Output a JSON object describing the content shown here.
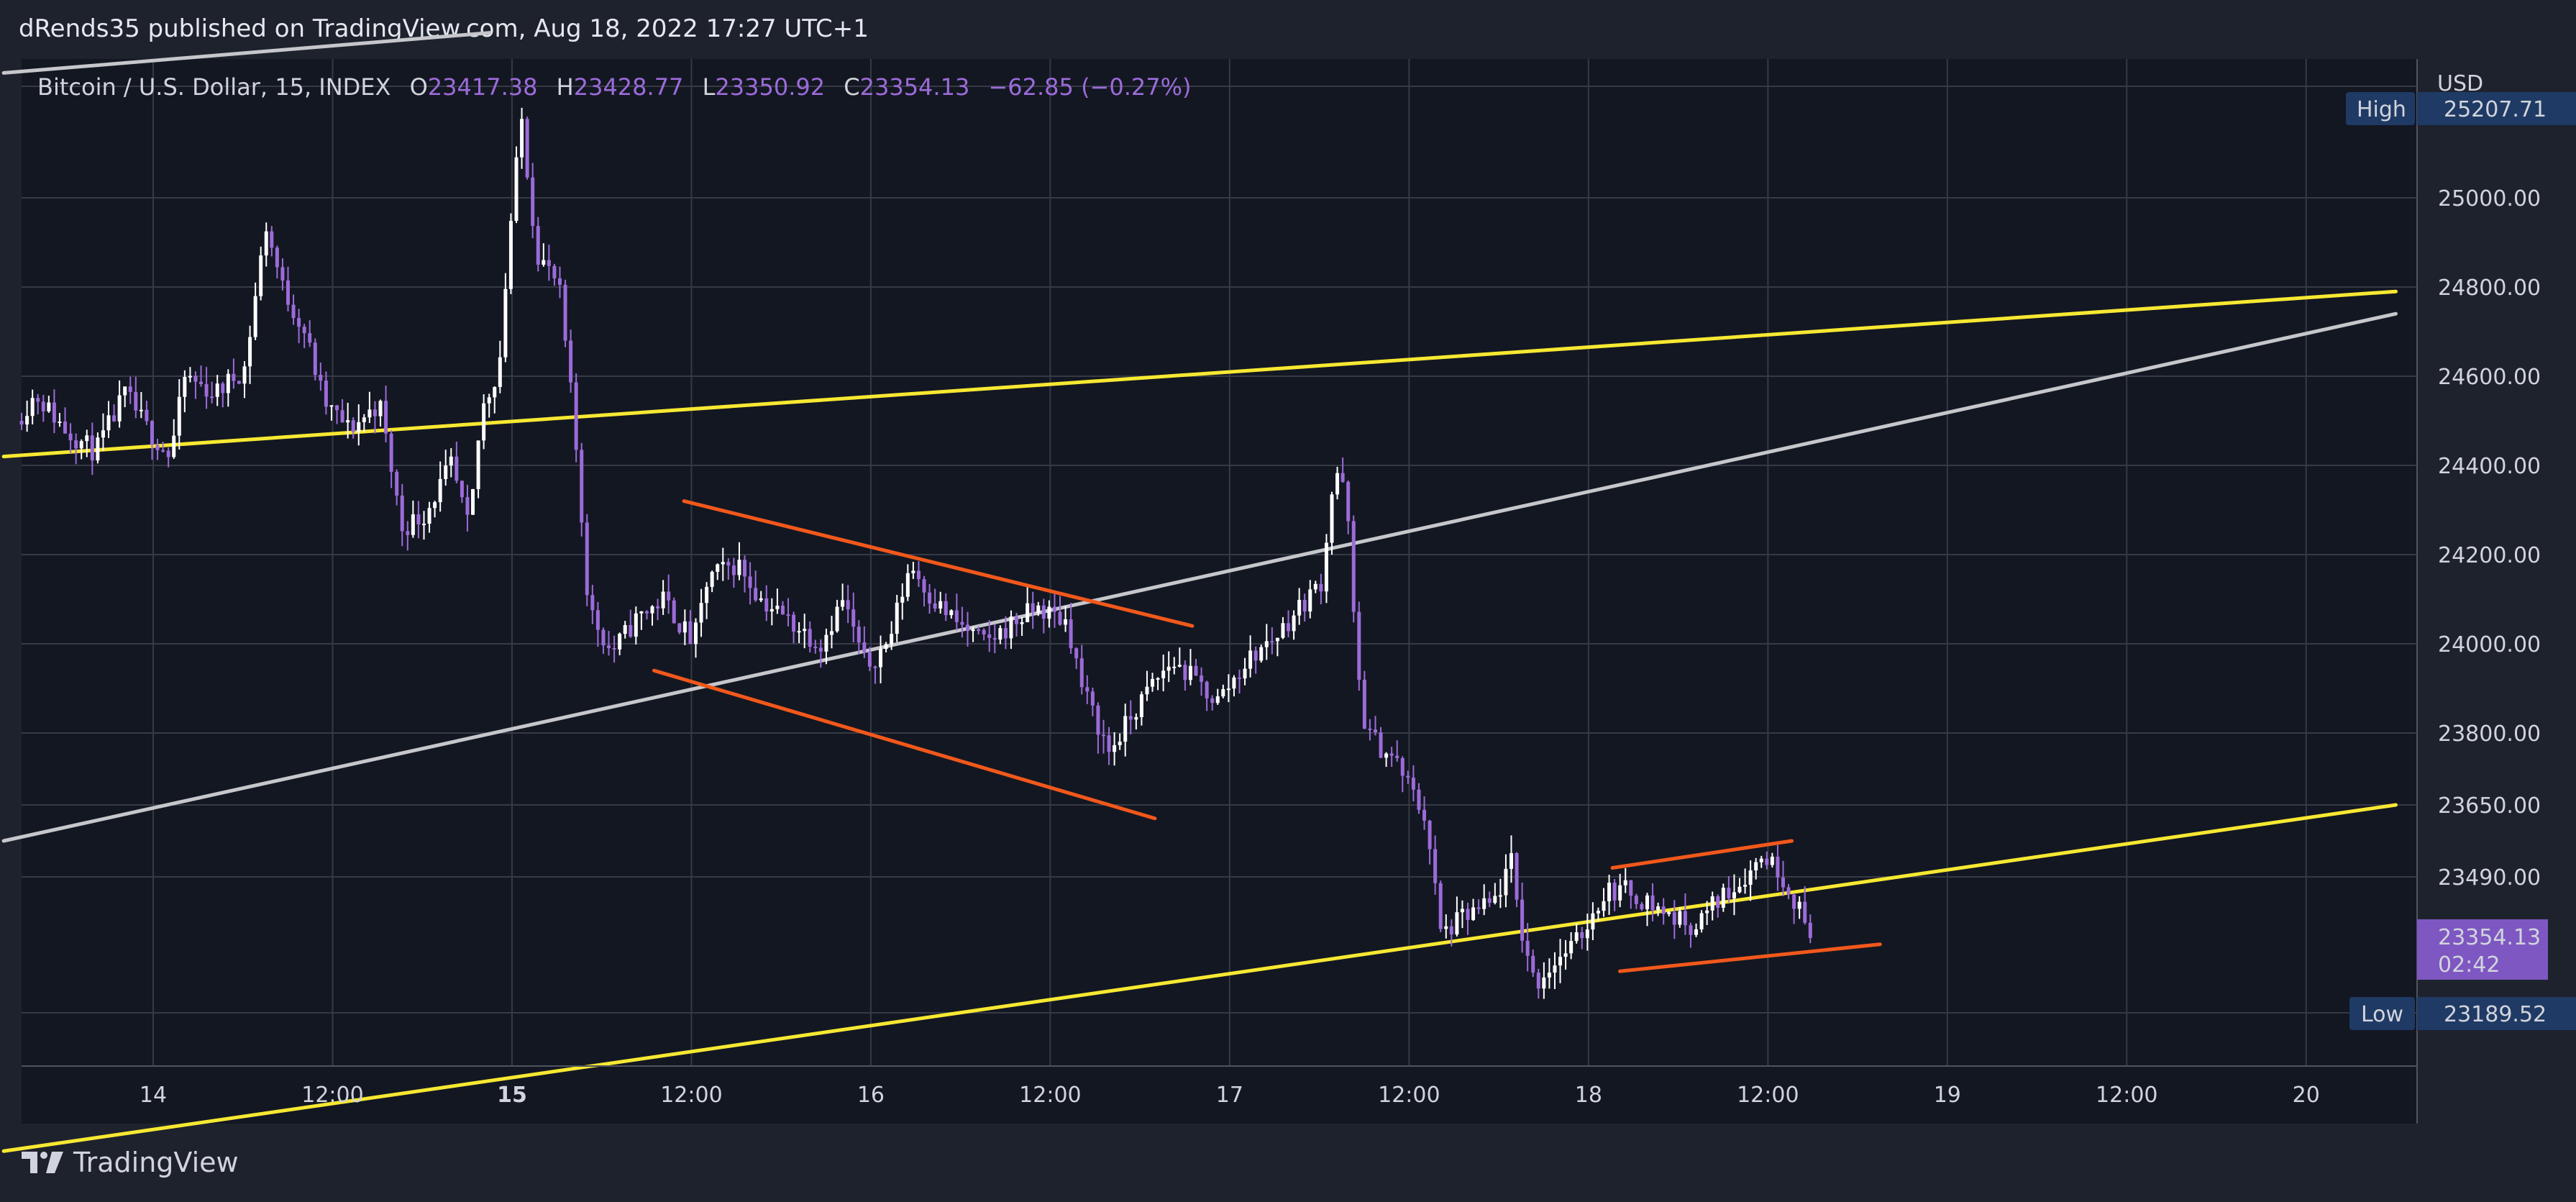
{
  "publisher_line": "dRends35 published on TradingView.com, Aug 18, 2022 17:27 UTC+1",
  "legend": {
    "symbol": "Bitcoin / U.S. Dollar, 15, INDEX",
    "o_label": "O",
    "o_value": "23417.38",
    "h_label": "H",
    "h_value": "23428.77",
    "l_label": "L",
    "l_value": "23350.92",
    "c_label": "C",
    "c_value": "23354.13",
    "change": "−62.85 (−0.27%)"
  },
  "currency": "USD",
  "high_marker": {
    "label": "High",
    "value": "25207.71"
  },
  "low_marker": {
    "label": "Low",
    "value": "23189.52"
  },
  "last_price": {
    "value": "23354.13",
    "countdown": "02:42"
  },
  "brand": "TradingView",
  "colors": {
    "background": "#131722",
    "frame": "#1e222d",
    "grid": "#363a45",
    "candle": "#ffffff",
    "wick_down": "#9c6bd9",
    "trend_yellow": "#f7e832",
    "trend_gray": "#c6c7cb",
    "pattern_orange": "#f2581b",
    "last_price_bg": "#7e57c2",
    "marker_bg": "#1f3a64"
  },
  "chart_data": {
    "type": "candlestick",
    "symbol": "Bitcoin / U.S. Dollar",
    "interval": "15",
    "y_axis_ticks": [
      25000.0,
      24800.0,
      24600.0,
      24400.0,
      24200.0,
      24000.0,
      23800.0,
      23650.0,
      23490.0
    ],
    "x_axis_ticks": [
      {
        "label": "14",
        "t": 0,
        "bold": false
      },
      {
        "label": "12:00",
        "t": 12,
        "bold": false
      },
      {
        "label": "15",
        "t": 24,
        "bold": true
      },
      {
        "label": "12:00",
        "t": 36,
        "bold": false
      },
      {
        "label": "16",
        "t": 48,
        "bold": false
      },
      {
        "label": "12:00",
        "t": 60,
        "bold": false
      },
      {
        "label": "17",
        "t": 72,
        "bold": false
      },
      {
        "label": "12:00",
        "t": 84,
        "bold": false
      },
      {
        "label": "18",
        "t": 96,
        "bold": false
      },
      {
        "label": "12:00",
        "t": 108,
        "bold": false
      },
      {
        "label": "19",
        "t": 120,
        "bold": false
      },
      {
        "label": "12:00",
        "t": 132,
        "bold": false
      },
      {
        "label": "20",
        "t": 144,
        "bold": false
      }
    ],
    "price_path": [
      [
        -8.8,
        24500
      ],
      [
        -7.5,
        24560
      ],
      [
        -5.5,
        24480
      ],
      [
        -3.5,
        24430
      ],
      [
        -1.5,
        24560
      ],
      [
        0,
        24480
      ],
      [
        1.5,
        24420
      ],
      [
        2.5,
        24600
      ],
      [
        4.5,
        24560
      ],
      [
        6.5,
        24620
      ],
      [
        7.9,
        24940
      ],
      [
        9,
        24800
      ],
      [
        10.5,
        24700
      ],
      [
        11.8,
        24540
      ],
      [
        13.5,
        24480
      ],
      [
        15.5,
        24540
      ],
      [
        17,
        24260
      ],
      [
        18.5,
        24290
      ],
      [
        20.3,
        24400
      ],
      [
        21.5,
        24250
      ],
      [
        22.3,
        24520
      ],
      [
        23.5,
        24620
      ],
      [
        24.2,
        24920
      ],
      [
        25,
        25180
      ],
      [
        26,
        24880
      ],
      [
        27.5,
        24800
      ],
      [
        28.5,
        24500
      ],
      [
        29.5,
        24080
      ],
      [
        31,
        23980
      ],
      [
        32.8,
        24060
      ],
      [
        34.5,
        24100
      ],
      [
        36.5,
        24000
      ],
      [
        37.5,
        24150
      ],
      [
        39.5,
        24180
      ],
      [
        41,
        24100
      ],
      [
        43,
        24050
      ],
      [
        45,
        24000
      ],
      [
        46.5,
        24100
      ],
      [
        48,
        23950
      ],
      [
        49.5,
        24000
      ],
      [
        51,
        24180
      ],
      [
        52.5,
        24100
      ],
      [
        54,
        24050
      ],
      [
        56,
        24000
      ],
      [
        58,
        24050
      ],
      [
        59.5,
        24080
      ],
      [
        61.5,
        24050
      ],
      [
        62.5,
        23900
      ],
      [
        64.3,
        23760
      ],
      [
        65.5,
        23820
      ],
      [
        67,
        23900
      ],
      [
        68.5,
        23960
      ],
      [
        70,
        23920
      ],
      [
        71.5,
        23870
      ],
      [
        73.5,
        23960
      ],
      [
        75.5,
        24020
      ],
      [
        77,
        24080
      ],
      [
        78.5,
        24140
      ],
      [
        79.4,
        24400
      ],
      [
        80.2,
        24320
      ],
      [
        80.8,
        23970
      ],
      [
        81.5,
        23800
      ],
      [
        83.5,
        23740
      ],
      [
        85.5,
        23620
      ],
      [
        86.5,
        23360
      ],
      [
        88,
        23400
      ],
      [
        90,
        23430
      ],
      [
        91.2,
        23520
      ],
      [
        91.8,
        23380
      ],
      [
        92.8,
        23250
      ],
      [
        94,
        23300
      ],
      [
        95.5,
        23340
      ],
      [
        97.5,
        23460
      ],
      [
        99,
        23460
      ],
      [
        100.5,
        23430
      ],
      [
        102,
        23400
      ],
      [
        103.5,
        23380
      ],
      [
        105,
        23440
      ],
      [
        106.5,
        23480
      ],
      [
        108.1,
        23540
      ],
      [
        109.2,
        23500
      ],
      [
        110.3,
        23430
      ],
      [
        111.2,
        23354.13
      ]
    ],
    "candle_count": 330,
    "range_high": 25207.71,
    "range_low": 23189.52,
    "last_close": 23354.13,
    "trendlines": [
      {
        "color": "yellow",
        "from": [
          -10,
          24420
        ],
        "to": [
          150,
          24790
        ]
      },
      {
        "color": "yellow",
        "from": [
          -10,
          22880
        ],
        "to": [
          150,
          23650
        ]
      },
      {
        "color": "gray",
        "from": [
          -10,
          23570
        ],
        "to": [
          150,
          24740
        ]
      },
      {
        "color": "gray",
        "from": [
          -10,
          25280
        ],
        "to": [
          22.5,
          25370
        ]
      },
      {
        "color": "orange",
        "from": [
          35.5,
          24320
        ],
        "to": [
          69.5,
          24040
        ]
      },
      {
        "color": "orange",
        "from": [
          33.5,
          23940
        ],
        "to": [
          67,
          23620
        ]
      },
      {
        "color": "orange",
        "from": [
          97.6,
          23510
        ],
        "to": [
          109.6,
          23570
        ]
      },
      {
        "color": "orange",
        "from": [
          98.1,
          23280
        ],
        "to": [
          115.5,
          23340
        ]
      }
    ]
  }
}
